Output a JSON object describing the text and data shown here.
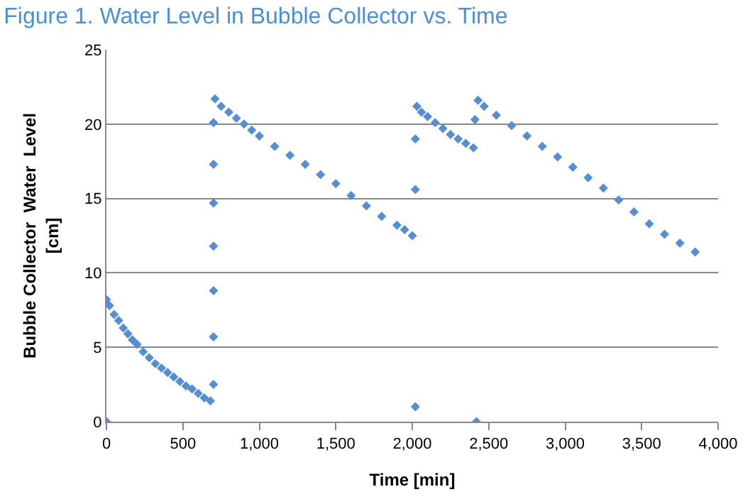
{
  "chart_data": {
    "type": "scatter",
    "title": "Figure 1. Water Level in Bubble Collector vs. Time",
    "xlabel": "Time [min]",
    "ylabel": "Bubble Collector  Water  Level\n[cm]",
    "series": [
      {
        "color": "#558ed5",
        "x": [
          0,
          0,
          20,
          50,
          80,
          110,
          140,
          170,
          200,
          240,
          280,
          320,
          360,
          400,
          440,
          480,
          520,
          560,
          600,
          640,
          680,
          700,
          700,
          700,
          700,
          700,
          700,
          700,
          710,
          750,
          800,
          850,
          900,
          950,
          1000,
          1100,
          1200,
          1300,
          1400,
          1500,
          1600,
          1700,
          1800,
          1900,
          1950,
          2000,
          2020,
          2020,
          2020,
          2030,
          2060,
          2100,
          2150,
          2200,
          2250,
          2300,
          2350,
          2400,
          2410,
          2420,
          2430,
          2470,
          2550,
          2650,
          2750,
          2850,
          2950,
          3050,
          3150,
          3250,
          3350,
          3450,
          3550,
          3650,
          3750,
          3850
        ],
        "values": [
          0,
          8.2,
          7.8,
          7.2,
          6.8,
          6.3,
          5.9,
          5.5,
          5.2,
          4.7,
          4.3,
          3.9,
          3.6,
          3.3,
          3.0,
          2.7,
          2.4,
          2.2,
          1.9,
          1.6,
          1.4,
          2.5,
          5.7,
          8.8,
          11.8,
          14.7,
          17.3,
          20.1,
          21.7,
          21.2,
          20.8,
          20.4,
          20.0,
          19.6,
          19.2,
          18.5,
          17.9,
          17.3,
          16.6,
          16.0,
          15.2,
          14.5,
          13.8,
          13.2,
          12.9,
          12.5,
          1.0,
          15.6,
          19.0,
          21.2,
          20.8,
          20.5,
          20.1,
          19.7,
          19.3,
          19.0,
          18.7,
          18.4,
          20.3,
          0,
          21.6,
          21.2,
          20.6,
          19.9,
          19.2,
          18.5,
          17.8,
          17.1,
          16.4,
          15.7,
          14.9,
          14.1,
          13.3,
          12.6,
          12.0,
          11.4
        ]
      }
    ],
    "xlim": [
      0,
      4000
    ],
    "xticks": [
      {
        "value": 0,
        "label": "0"
      },
      {
        "value": 500,
        "label": "500"
      },
      {
        "value": 1000,
        "label": "1,000"
      },
      {
        "value": 1500,
        "label": "1,500"
      },
      {
        "value": 2000,
        "label": "2,000"
      },
      {
        "value": 2500,
        "label": "2,500"
      },
      {
        "value": 3000,
        "label": "3,000"
      },
      {
        "value": 3500,
        "label": "3,500"
      },
      {
        "value": 4000,
        "label": "4,000"
      }
    ],
    "ylim": [
      0,
      25
    ],
    "yticks": [
      0,
      5,
      10,
      15,
      20,
      25
    ],
    "grid": "y",
    "marker": "diamond"
  }
}
